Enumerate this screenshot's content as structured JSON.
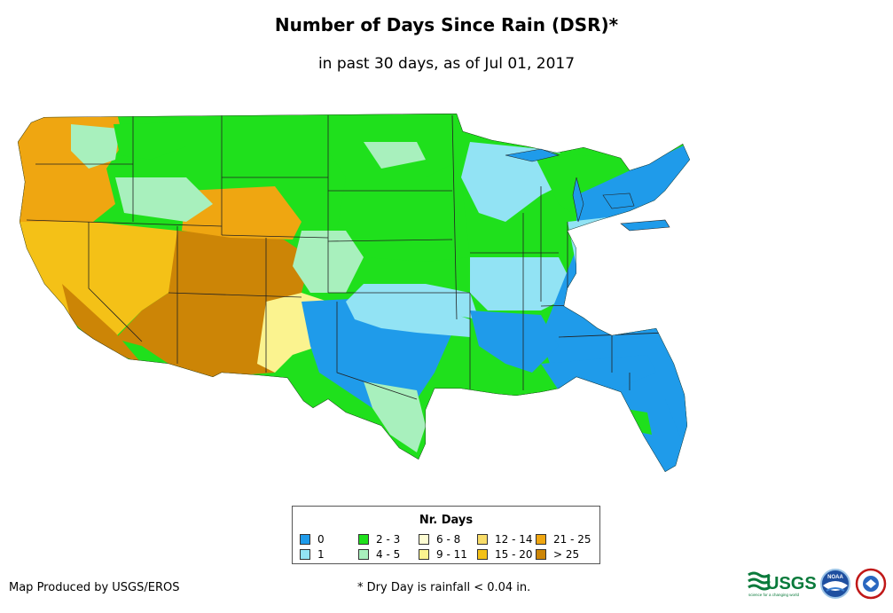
{
  "title": "Number of Days Since Rain (DSR)*",
  "subtitle": "in past 30 days, as of Jul 01, 2017",
  "legend": {
    "title": "Nr. Days",
    "items": [
      {
        "label": "0",
        "color": "#1f9bea"
      },
      {
        "label": "1",
        "color": "#92e3f4"
      },
      {
        "label": "2 - 3",
        "color": "#1fe01c"
      },
      {
        "label": "4 - 5",
        "color": "#a8f0bd"
      },
      {
        "label": "6 - 8",
        "color": "#fdfcd2"
      },
      {
        "label": "9 - 11",
        "color": "#fbf38f"
      },
      {
        "label": "12 - 14",
        "color": "#f8dc68"
      },
      {
        "label": "15 - 20",
        "color": "#f4c117"
      },
      {
        "label": "21 - 25",
        "color": "#efa611"
      },
      {
        "label": "> 25",
        "color": "#cc8506"
      }
    ]
  },
  "footer": {
    "producer": "Map Produced by USGS/EROS",
    "note": "* Dry Day is rainfall < 0.04 in."
  },
  "logos": {
    "usgs": "USGS",
    "usgs_tagline": "science for a changing world",
    "noaa": "NOAA",
    "nws": "National Weather Service"
  }
}
